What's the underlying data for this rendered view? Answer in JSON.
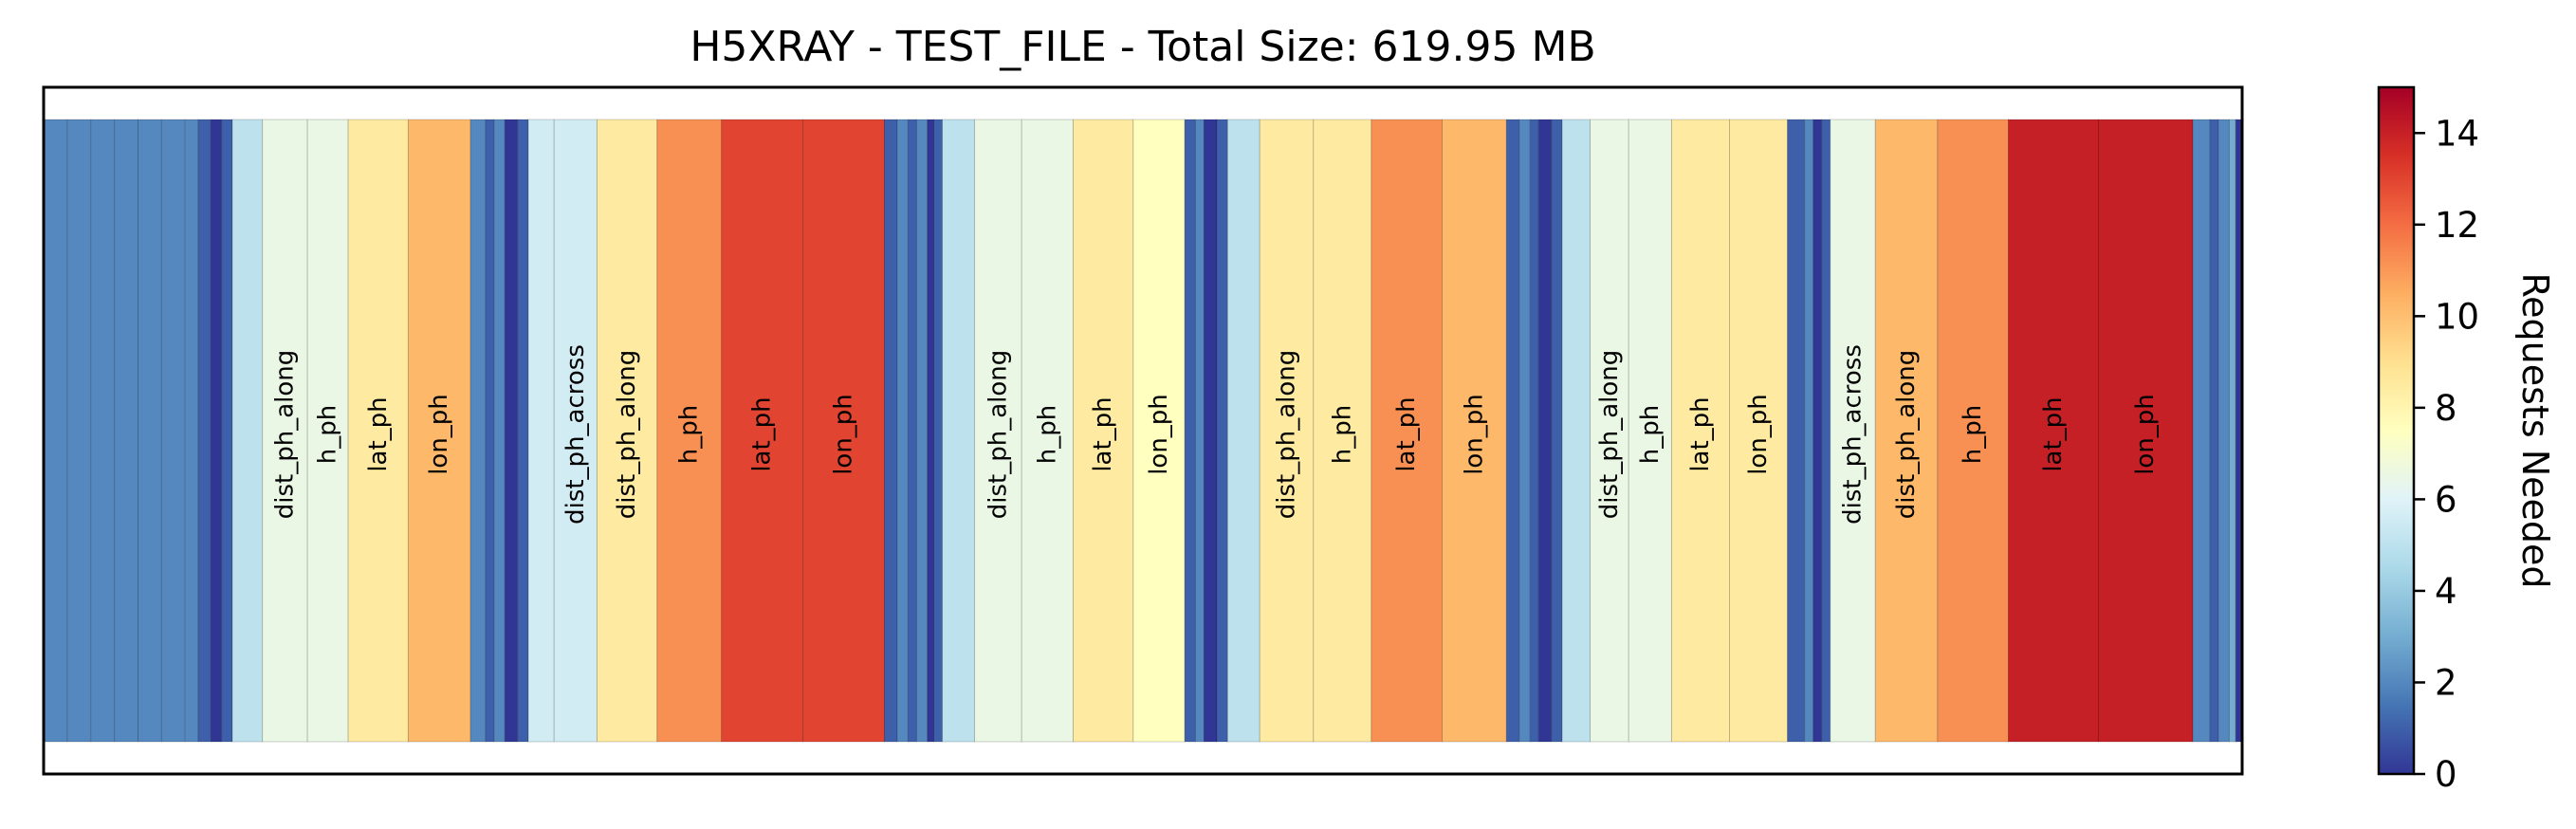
{
  "chart_data": {
    "type": "heatmap",
    "title": "H5XRAY - TEST_FILE - Total Size: 619.95 MB",
    "colorbar": {
      "label": "Requests Needed",
      "range": [
        0,
        15
      ],
      "ticks": [
        0,
        2,
        4,
        6,
        8,
        10,
        12,
        14
      ],
      "colormap": "RdYlBu_r"
    },
    "segments": [
      {
        "start": 0.0,
        "end": 1.1,
        "requests": 2
      },
      {
        "start": 1.1,
        "end": 2.2,
        "requests": 2
      },
      {
        "start": 2.2,
        "end": 3.3,
        "requests": 2
      },
      {
        "start": 3.3,
        "end": 4.4,
        "requests": 2
      },
      {
        "start": 4.4,
        "end": 5.5,
        "requests": 2
      },
      {
        "start": 5.5,
        "end": 6.6,
        "requests": 2
      },
      {
        "start": 6.6,
        "end": 7.2,
        "requests": 2
      },
      {
        "start": 7.2,
        "end": 7.8,
        "requests": 1
      },
      {
        "start": 7.8,
        "end": 8.3,
        "requests": 0
      },
      {
        "start": 8.3,
        "end": 8.8,
        "requests": 1
      },
      {
        "start": 8.8,
        "end": 10.2,
        "requests": 5
      },
      {
        "start": 10.2,
        "end": 12.3,
        "requests": 6.5,
        "label": "dist_ph_along"
      },
      {
        "start": 12.3,
        "end": 14.2,
        "requests": 6.5,
        "label": "h_ph"
      },
      {
        "start": 14.2,
        "end": 17.0,
        "requests": 8.5,
        "label": "lat_ph"
      },
      {
        "start": 17.0,
        "end": 19.9,
        "requests": 10.2,
        "label": "lon_ph"
      },
      {
        "start": 19.9,
        "end": 20.6,
        "requests": 2
      },
      {
        "start": 20.6,
        "end": 21.0,
        "requests": 1
      },
      {
        "start": 21.0,
        "end": 21.5,
        "requests": 2
      },
      {
        "start": 21.5,
        "end": 22.1,
        "requests": 0
      },
      {
        "start": 22.1,
        "end": 22.6,
        "requests": 1
      },
      {
        "start": 22.6,
        "end": 23.8,
        "requests": 5.6
      },
      {
        "start": 23.8,
        "end": 25.8,
        "requests": 5.6,
        "label": "dist_ph_across"
      },
      {
        "start": 25.8,
        "end": 28.6,
        "requests": 8.5,
        "label": "dist_ph_along"
      },
      {
        "start": 28.6,
        "end": 31.6,
        "requests": 11.2,
        "label": "h_ph"
      },
      {
        "start": 31.6,
        "end": 35.4,
        "requests": 13,
        "label": "lat_ph"
      },
      {
        "start": 35.4,
        "end": 39.2,
        "requests": 13,
        "label": "lon_ph"
      },
      {
        "start": 39.2,
        "end": 39.8,
        "requests": 1
      },
      {
        "start": 39.8,
        "end": 40.3,
        "requests": 2
      },
      {
        "start": 40.3,
        "end": 40.7,
        "requests": 1
      },
      {
        "start": 40.7,
        "end": 41.2,
        "requests": 2
      },
      {
        "start": 41.2,
        "end": 41.5,
        "requests": 0
      },
      {
        "start": 41.5,
        "end": 41.9,
        "requests": 1
      },
      {
        "start": 41.9,
        "end": 43.4,
        "requests": 5
      },
      {
        "start": 43.4,
        "end": 45.6,
        "requests": 6.5,
        "label": "dist_ph_along"
      },
      {
        "start": 45.6,
        "end": 48.0,
        "requests": 6.5,
        "label": "h_ph"
      },
      {
        "start": 48.0,
        "end": 50.8,
        "requests": 8.5,
        "label": "lat_ph"
      },
      {
        "start": 50.8,
        "end": 53.2,
        "requests": 7.5,
        "label": "lon_ph"
      },
      {
        "start": 53.2,
        "end": 53.7,
        "requests": 1
      },
      {
        "start": 53.7,
        "end": 54.1,
        "requests": 2
      },
      {
        "start": 54.1,
        "end": 54.7,
        "requests": 0
      },
      {
        "start": 54.7,
        "end": 55.2,
        "requests": 1
      },
      {
        "start": 55.2,
        "end": 56.7,
        "requests": 5
      },
      {
        "start": 56.7,
        "end": 59.2,
        "requests": 8.5,
        "label": "dist_ph_along"
      },
      {
        "start": 59.2,
        "end": 61.9,
        "requests": 8.5,
        "label": "h_ph"
      },
      {
        "start": 61.9,
        "end": 65.2,
        "requests": 11.2,
        "label": "lat_ph"
      },
      {
        "start": 65.2,
        "end": 68.2,
        "requests": 10.2,
        "label": "lon_ph"
      },
      {
        "start": 68.2,
        "end": 68.8,
        "requests": 1
      },
      {
        "start": 68.8,
        "end": 69.3,
        "requests": 2
      },
      {
        "start": 69.3,
        "end": 69.7,
        "requests": 1
      },
      {
        "start": 69.7,
        "end": 70.3,
        "requests": 0
      },
      {
        "start": 70.3,
        "end": 70.8,
        "requests": 1
      },
      {
        "start": 70.8,
        "end": 72.1,
        "requests": 5
      },
      {
        "start": 72.1,
        "end": 73.9,
        "requests": 6.5,
        "label": "dist_ph_along"
      },
      {
        "start": 73.9,
        "end": 75.9,
        "requests": 6.5,
        "label": "h_ph"
      },
      {
        "start": 75.9,
        "end": 78.6,
        "requests": 8.5,
        "label": "lat_ph"
      },
      {
        "start": 78.6,
        "end": 81.3,
        "requests": 8.5,
        "label": "lon_ph"
      },
      {
        "start": 81.3,
        "end": 82.1,
        "requests": 1
      },
      {
        "start": 82.1,
        "end": 82.5,
        "requests": 2
      },
      {
        "start": 82.5,
        "end": 82.9,
        "requests": 0
      },
      {
        "start": 82.9,
        "end": 83.3,
        "requests": 1
      },
      {
        "start": 83.3,
        "end": 85.4,
        "requests": 6.5,
        "label": "dist_ph_across"
      },
      {
        "start": 85.4,
        "end": 88.3,
        "requests": 10.2,
        "label": "dist_ph_along"
      },
      {
        "start": 88.3,
        "end": 91.6,
        "requests": 11.2,
        "label": "h_ph"
      },
      {
        "start": 91.6,
        "end": 95.8,
        "requests": 14,
        "label": "lat_ph"
      },
      {
        "start": 95.8,
        "end": 100.2,
        "requests": 14,
        "label": "lon_ph"
      },
      {
        "start": 100.2,
        "end": 101.0,
        "requests": 2
      },
      {
        "start": 101.0,
        "end": 101.4,
        "requests": 1
      },
      {
        "start": 101.4,
        "end": 101.9,
        "requests": 2
      },
      {
        "start": 101.9,
        "end": 102.2,
        "requests": 3
      },
      {
        "start": 102.2,
        "end": 102.5,
        "requests": 0
      }
    ],
    "xlim": [
      0,
      102.5
    ],
    "grid": false,
    "xticks": [],
    "yticks": []
  }
}
